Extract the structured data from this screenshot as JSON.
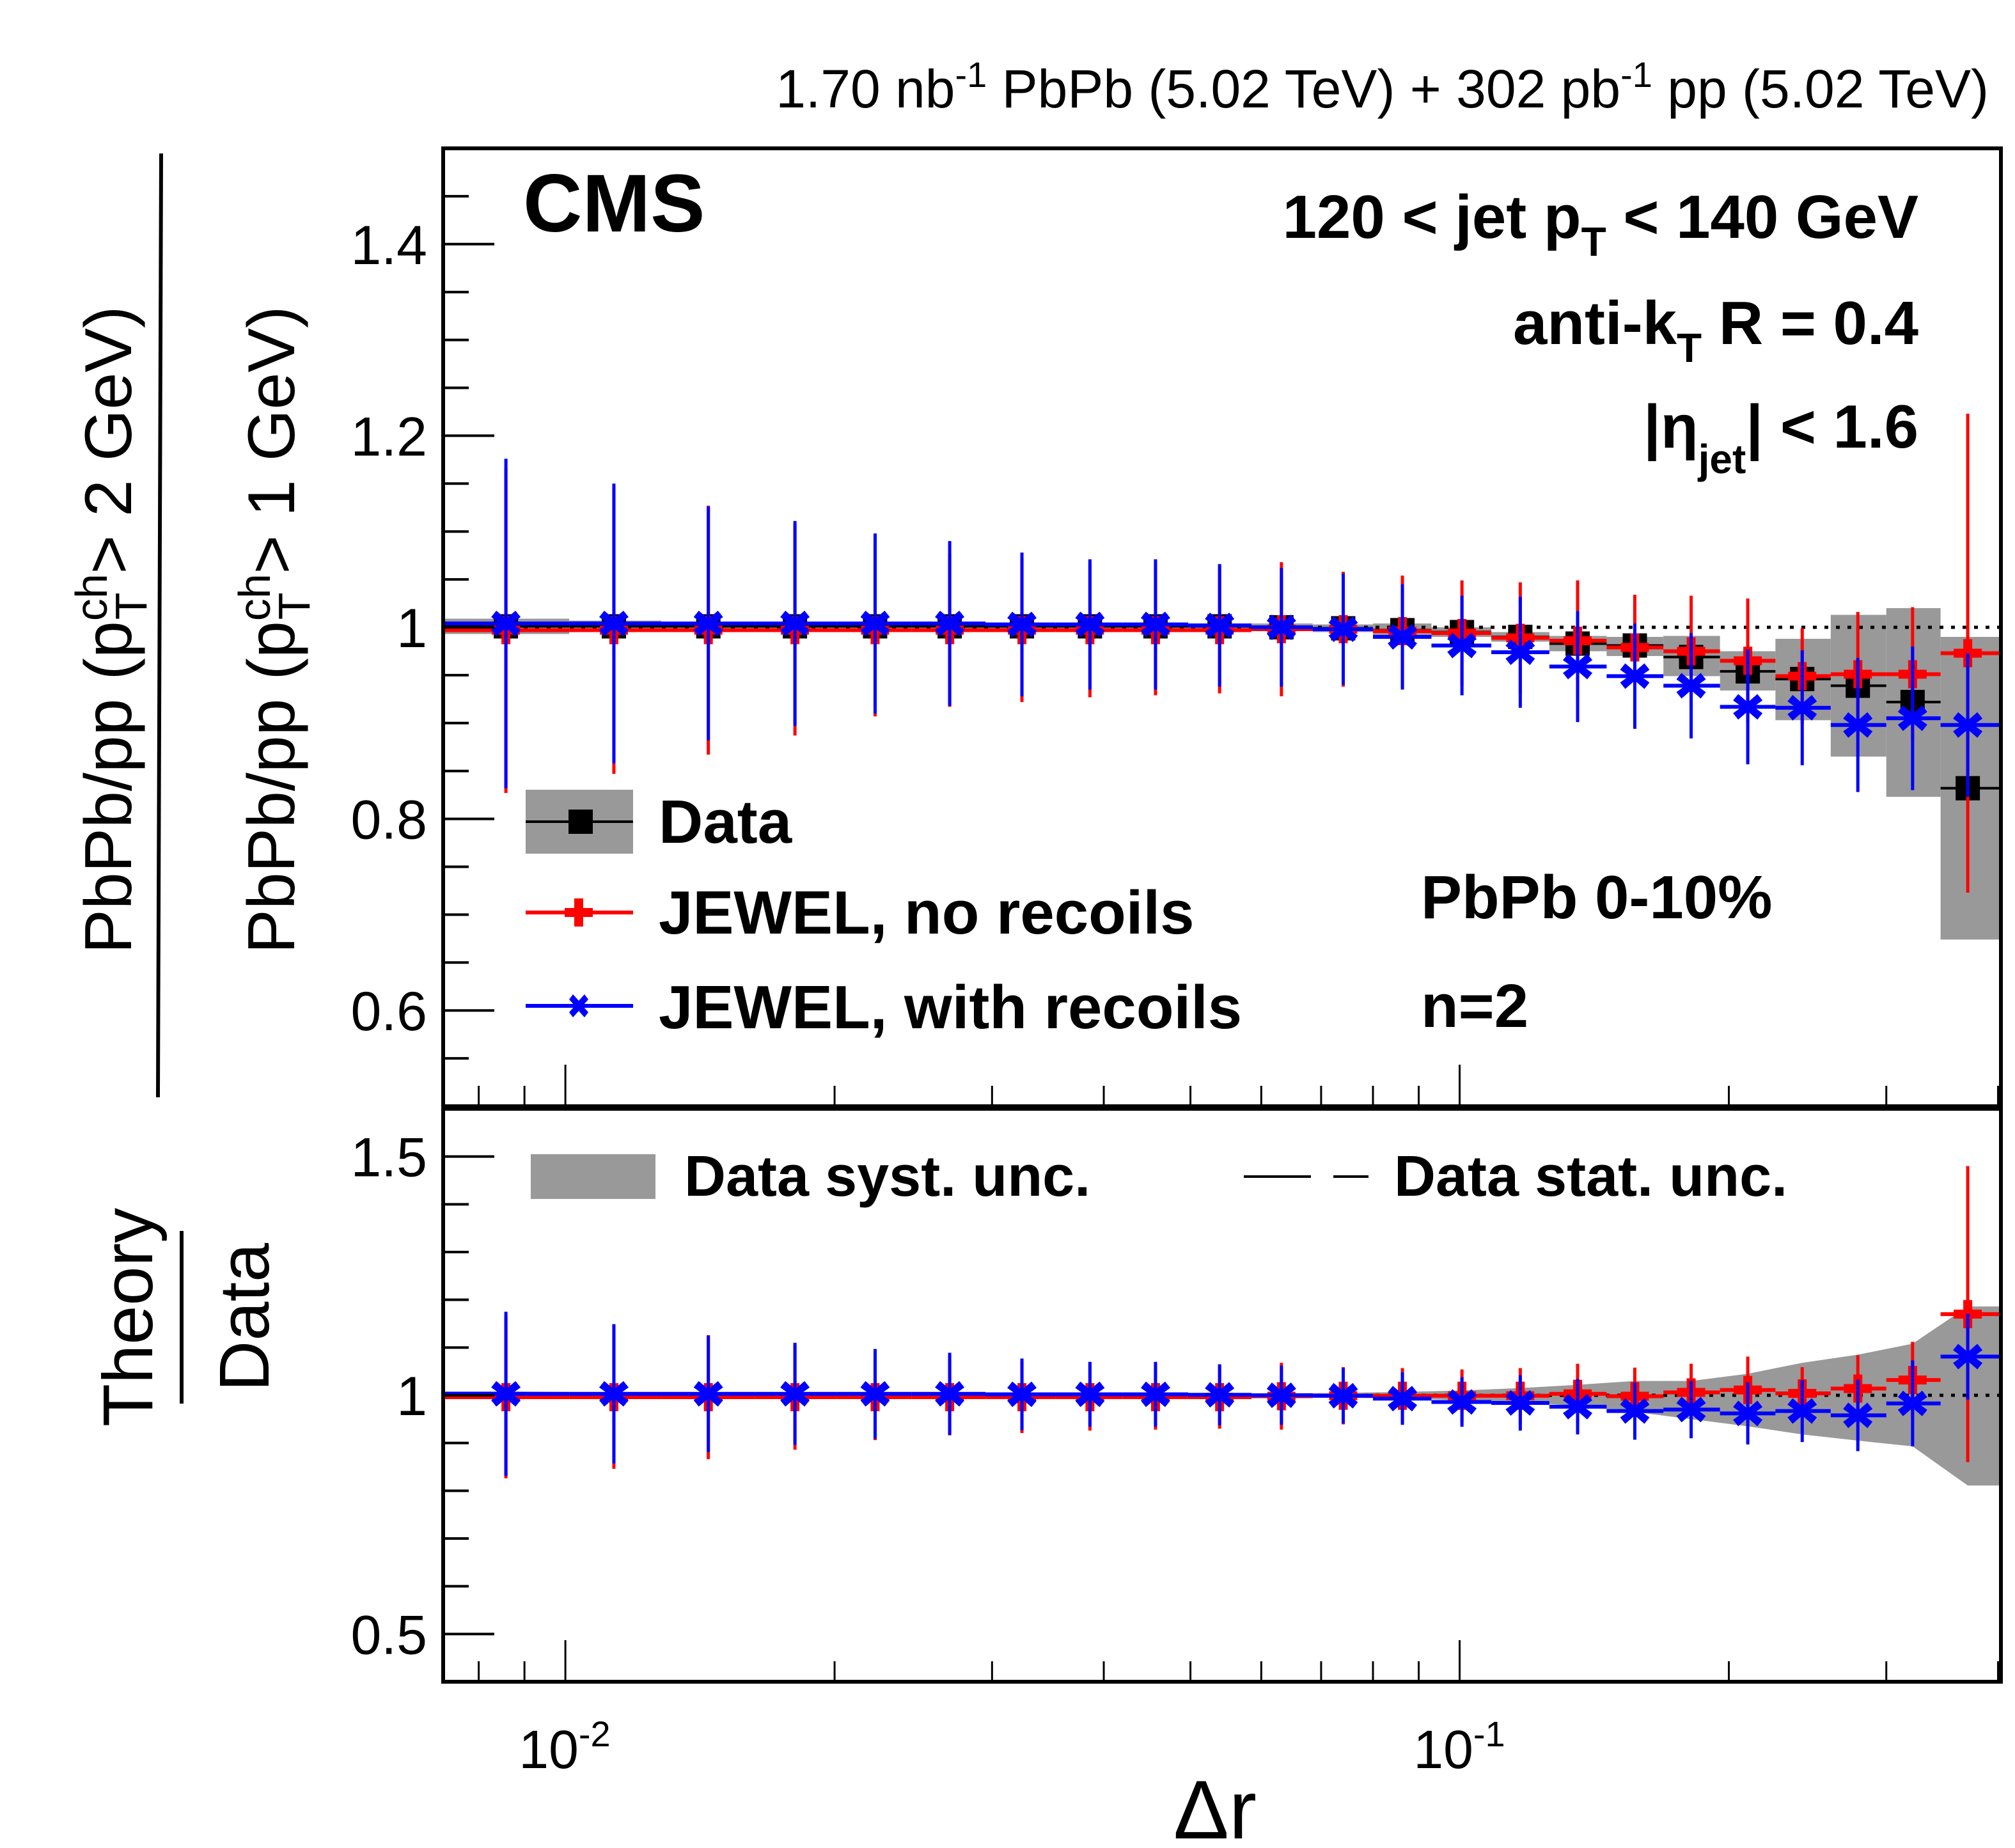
{
  "header": {
    "lumi_text_a": "1.70 nb",
    "lumi_sup_a": "-1",
    "lumi_text_b": " PbPb (5.02 TeV) + 302 pb",
    "lumi_sup_b": "-1",
    "lumi_text_c": " pp (5.02 TeV)"
  },
  "labels": {
    "cms": "CMS",
    "jet_pt_pre": "120 < jet p",
    "jet_pt_sub": "T",
    "jet_pt_post": " < 140 GeV",
    "antikt_pre": "anti-k",
    "antikt_sub": "T",
    "antikt_post": " R = 0.4",
    "eta_pre": "|η",
    "eta_sub": "jet",
    "eta_post": "| < 1.6",
    "centrality": "PbPb 0-10%",
    "n": "n=2"
  },
  "colors": {
    "data": "#000000",
    "no_recoil": "#ff0000",
    "with_recoil": "#0000ff",
    "syst": "#999999"
  },
  "chart_data": [
    {
      "type": "scatter",
      "panel": "upper",
      "title": "",
      "xlabel": "Δr",
      "ylabel_num": "PbPb/pp (p_T^ch > 2 GeV)",
      "ylabel_den": "PbPb/pp (p_T^ch > 1 GeV)",
      "xscale": "log",
      "xlim": [
        0.0073,
        0.403
      ],
      "ylim": [
        0.5,
        1.5
      ],
      "yticks": [
        0.6,
        0.8,
        1.0,
        1.2,
        1.4
      ],
      "ytick_labels": [
        "0.6",
        "0.8",
        "1",
        "1.2",
        "1.4"
      ],
      "xticks": [
        0.01,
        0.1
      ],
      "xtick_labels": [
        "10^-2",
        "10^-1"
      ],
      "reference_line": 1.0,
      "x": [
        0.00858,
        0.01133,
        0.01445,
        0.01806,
        0.0222,
        0.0269,
        0.0324,
        0.0386,
        0.0457,
        0.0539,
        0.0632,
        0.0741,
        0.0863,
        0.1006,
        0.1169,
        0.1355,
        0.157,
        0.1815,
        0.21,
        0.2416,
        0.2788,
        0.321,
        0.37
      ],
      "bin_edges": [
        0.0073,
        0.0101,
        0.0128,
        0.0163,
        0.0201,
        0.0244,
        0.0295,
        0.0353,
        0.042,
        0.0497,
        0.0585,
        0.0685,
        0.08,
        0.093,
        0.1085,
        0.126,
        0.146,
        0.169,
        0.1955,
        0.2255,
        0.26,
        0.3,
        0.345,
        0.403
      ],
      "legend": [
        "Data",
        "JEWEL, no recoils",
        "JEWEL, with recoils"
      ],
      "legend_position": "bottom-left",
      "series": [
        {
          "name": "Data",
          "marker": "square",
          "values": [
            1.001,
            1.001,
            1.001,
            1.001,
            1.001,
            1.001,
            1.001,
            1.001,
            1.001,
            1.001,
            1.0,
            0.999,
            0.997,
            0.995,
            0.99,
            0.983,
            0.981,
            0.969,
            0.954,
            0.946,
            0.939,
            0.922,
            0.832
          ],
          "syst_low": [
            0.993,
            0.995,
            0.996,
            0.997,
            0.997,
            0.997,
            0.998,
            0.998,
            0.998,
            0.998,
            0.996,
            0.995,
            0.99,
            0.99,
            0.985,
            0.975,
            0.97,
            0.949,
            0.934,
            0.903,
            0.865,
            0.823,
            0.674
          ],
          "syst_high": [
            1.009,
            1.007,
            1.006,
            1.005,
            1.005,
            1.005,
            1.004,
            1.004,
            1.004,
            1.004,
            1.004,
            1.003,
            1.004,
            1.0,
            0.995,
            0.991,
            0.99,
            0.991,
            0.975,
            0.988,
            1.013,
            1.02,
            0.99
          ]
        },
        {
          "name": "JEWEL, no recoils",
          "marker": "plus",
          "values": [
            0.997,
            0.997,
            0.997,
            0.997,
            0.997,
            0.997,
            0.997,
            0.997,
            0.997,
            0.997,
            0.998,
            0.998,
            0.996,
            0.994,
            0.989,
            0.986,
            0.979,
            0.975,
            0.965,
            0.949,
            0.951,
            0.951,
            0.973
          ],
          "err": [
            0.17,
            0.15,
            0.13,
            0.11,
            0.09,
            0.08,
            0.075,
            0.07,
            0.068,
            0.066,
            0.07,
            0.06,
            0.058,
            0.055,
            0.058,
            0.063,
            0.055,
            0.058,
            0.065,
            0.05,
            0.065,
            0.07,
            0.25
          ]
        },
        {
          "name": "JEWEL, with recoils",
          "marker": "star",
          "values": [
            1.004,
            1.004,
            1.004,
            1.004,
            1.004,
            1.004,
            1.003,
            1.003,
            1.003,
            1.002,
            1.0,
            0.998,
            0.99,
            0.981,
            0.974,
            0.959,
            0.949,
            0.939,
            0.917,
            0.916,
            0.898,
            0.905,
            0.898
          ],
          "err": [
            0.172,
            0.146,
            0.122,
            0.107,
            0.094,
            0.086,
            0.075,
            0.068,
            0.068,
            0.064,
            0.062,
            0.058,
            0.055,
            0.052,
            0.058,
            0.058,
            0.055,
            0.055,
            0.06,
            0.06,
            0.07,
            0.075,
            0.075
          ]
        }
      ]
    },
    {
      "type": "scatter",
      "panel": "lower",
      "title": "",
      "xlabel": "Δr",
      "ylabel_num": "Theory",
      "ylabel_den": "Data",
      "xscale": "log",
      "xlim": [
        0.0073,
        0.403
      ],
      "ylim": [
        0.4,
        1.6
      ],
      "yticks": [
        0.5,
        1.0,
        1.5
      ],
      "ytick_labels": [
        "0.5",
        "1",
        "1.5"
      ],
      "reference_line": 1.0,
      "legend": [
        "Data syst. unc.",
        "Data stat. unc."
      ],
      "legend_position": "top",
      "x": [
        0.00858,
        0.01133,
        0.01445,
        0.01806,
        0.0222,
        0.0269,
        0.0324,
        0.0386,
        0.0457,
        0.0539,
        0.0632,
        0.0741,
        0.0863,
        0.1006,
        0.1169,
        0.1355,
        0.157,
        0.1815,
        0.21,
        0.2416,
        0.2788,
        0.321,
        0.37
      ],
      "syst_band": {
        "low": [
          0.992,
          0.994,
          0.995,
          0.996,
          0.996,
          0.996,
          0.997,
          0.997,
          0.997,
          0.997,
          0.996,
          0.995,
          0.993,
          0.99,
          0.985,
          0.978,
          0.965,
          0.95,
          0.935,
          0.918,
          0.905,
          0.893,
          0.811
        ],
        "high": [
          1.008,
          1.006,
          1.005,
          1.004,
          1.004,
          1.004,
          1.003,
          1.003,
          1.003,
          1.003,
          1.004,
          1.005,
          1.007,
          1.01,
          1.015,
          1.022,
          1.03,
          1.03,
          1.045,
          1.068,
          1.085,
          1.108,
          1.186
        ]
      },
      "series": [
        {
          "name": "JEWEL, no recoils / Data",
          "marker": "plus",
          "values": [
            0.996,
            0.996,
            0.996,
            0.996,
            0.996,
            0.996,
            0.996,
            0.996,
            0.996,
            0.996,
            0.998,
            0.999,
            0.999,
            0.999,
            0.999,
            1.003,
            0.998,
            1.006,
            1.011,
            1.004,
            1.014,
            1.032,
            1.17
          ],
          "err": [
            0.17,
            0.15,
            0.13,
            0.11,
            0.09,
            0.08,
            0.075,
            0.07,
            0.068,
            0.066,
            0.07,
            0.06,
            0.058,
            0.055,
            0.058,
            0.063,
            0.06,
            0.06,
            0.07,
            0.055,
            0.07,
            0.08,
            0.31
          ]
        },
        {
          "name": "JEWEL, with recoils / Data",
          "marker": "star",
          "values": [
            1.003,
            1.003,
            1.003,
            1.003,
            1.003,
            1.003,
            1.002,
            1.002,
            1.002,
            1.001,
            1.0,
            0.999,
            0.993,
            0.986,
            0.984,
            0.976,
            0.967,
            0.97,
            0.962,
            0.967,
            0.958,
            0.983,
            1.081
          ],
          "err": [
            0.172,
            0.146,
            0.122,
            0.107,
            0.094,
            0.086,
            0.075,
            0.068,
            0.068,
            0.064,
            0.062,
            0.058,
            0.055,
            0.052,
            0.058,
            0.058,
            0.06,
            0.06,
            0.065,
            0.065,
            0.075,
            0.09,
            0.09
          ]
        }
      ]
    }
  ]
}
